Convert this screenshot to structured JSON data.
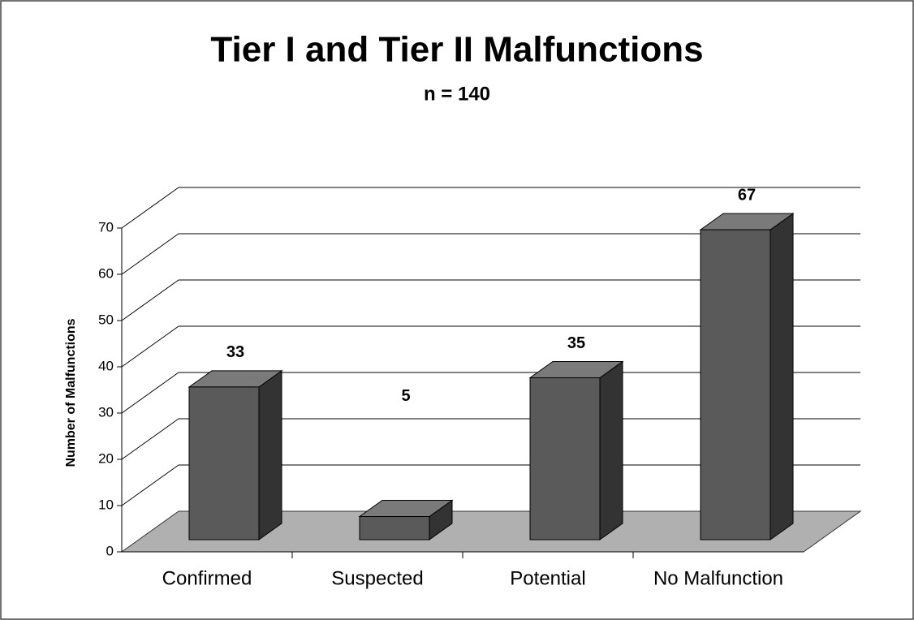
{
  "chart_data": {
    "type": "bar3d",
    "title": "Tier I and Tier II Malfunctions",
    "subtitle": "n = 140",
    "y_label": "Number of Malfunctions",
    "categories": [
      "Confirmed",
      "Suspected",
      "Potential",
      "No Malfunction"
    ],
    "values": [
      33,
      5,
      35,
      67
    ],
    "color": "#5a5a5a",
    "ylim": [
      0,
      70
    ],
    "yticks": [
      0,
      10,
      20,
      30,
      40,
      50,
      60,
      70
    ],
    "grid": true
  }
}
